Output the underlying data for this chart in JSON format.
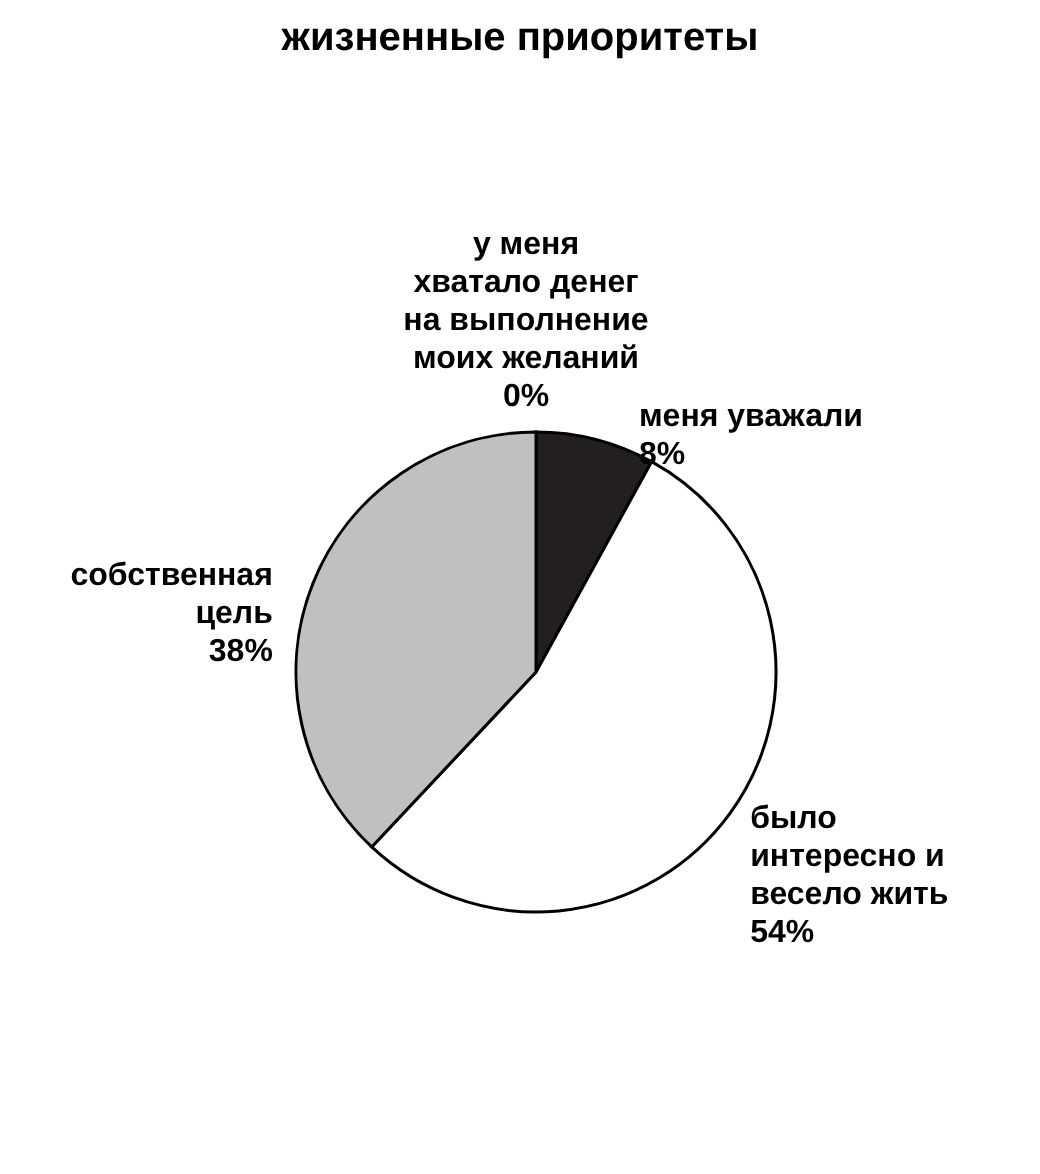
{
  "chart_data": {
    "type": "pie",
    "title": "жизненные приоритеты",
    "categories": [
      "меня уважали",
      "было интересно и весело жить",
      "собственная цель",
      "у меня хватало денег на выполнение моих желаний"
    ],
    "values": [
      8,
      54,
      38,
      0
    ],
    "value_labels": [
      "8%",
      "54%",
      "38%",
      "0%"
    ],
    "colors": [
      "#231f20",
      "#ffffff",
      "#c0c0c0",
      "#808080"
    ]
  }
}
